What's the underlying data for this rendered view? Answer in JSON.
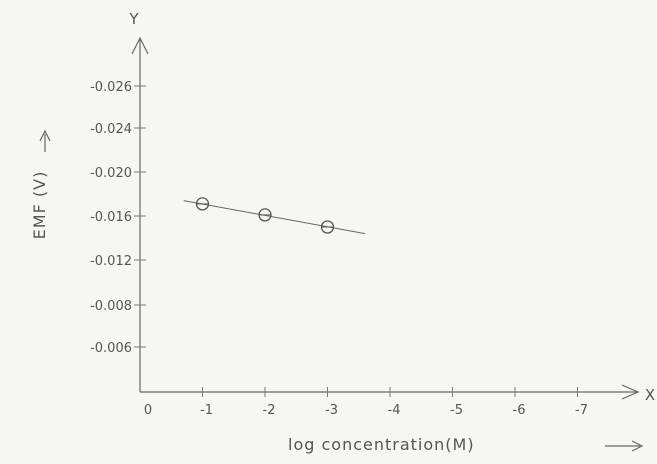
{
  "chart_data": {
    "type": "scatter",
    "xlabel": "log concentration(M)",
    "ylabel": "EMF (V)",
    "x_axis_letter": "X",
    "y_axis_letter": "Y",
    "origin_label": "0",
    "x_ticks": [
      "-1",
      "-2",
      "-3",
      "-4",
      "-5",
      "-6",
      "-7"
    ],
    "x_tick_values": [
      -1,
      -2,
      -3,
      -4,
      -5,
      -6,
      -7
    ],
    "y_ticks": [
      "-0.006",
      "-0.008",
      "-0.012",
      "-0.016",
      "-0.020",
      "-0.024",
      "-0.026"
    ],
    "series": [
      {
        "x": [
          -1,
          -2,
          -3
        ],
        "y": [
          -0.0171,
          -0.0161,
          -0.015
        ]
      }
    ],
    "trend_line": {
      "x": [
        -0.7,
        -3.6
      ],
      "y": [
        -0.0174,
        -0.0144
      ]
    },
    "xlim": [
      0,
      -7.5
    ],
    "grid": false,
    "legend": "none"
  }
}
